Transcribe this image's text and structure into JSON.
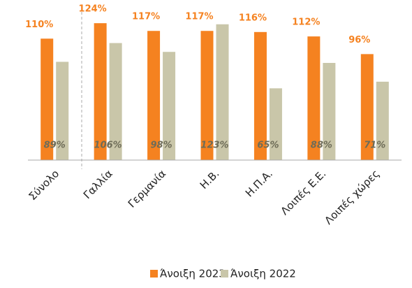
{
  "chart_data": {
    "type": "bar",
    "categories": [
      "Σύνολο",
      "Γαλλία",
      "Γερμανία",
      "Η.Β.",
      "Η.Π.Α.",
      "Λοιπές Ε.Ε.",
      "Λοιπές χώρες"
    ],
    "series": [
      {
        "name": "Άνοιξη 2023",
        "color": "#f58220",
        "values": [
          110,
          124,
          117,
          117,
          116,
          112,
          96
        ],
        "value_labels": [
          "110%",
          "124%",
          "117%",
          "117%",
          "116%",
          "112%",
          "96%"
        ]
      },
      {
        "name": "Άνοιξη 2022",
        "color": "#c9c6a9",
        "values": [
          89,
          106,
          98,
          123,
          65,
          88,
          71
        ],
        "value_labels": [
          "89%",
          "106%",
          "98%",
          "123%",
          "65%",
          "88%",
          "71%"
        ]
      }
    ],
    "ylim": [
      0,
      145
    ],
    "legend": "bottom"
  }
}
